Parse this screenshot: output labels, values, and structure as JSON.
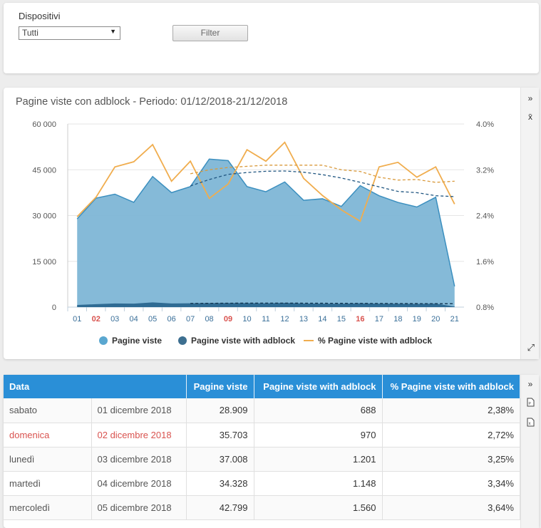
{
  "filter": {
    "label": "Dispositivi",
    "selected": "Tutti",
    "button": "Filter"
  },
  "colors": {
    "area_fill": "#7eb6d6",
    "area_line": "#3b8fbf",
    "adblock": "#2f6b93",
    "pct_line": "#f0ad4e",
    "header": "#2a8fd7",
    "weekend": "#d9534f"
  },
  "chart": {
    "title": "Pagine viste con adblock - Periodo: 01/12/2018-21/12/2018",
    "legend": [
      "Pagine viste",
      "Pagine viste with adblock",
      "% Pagine viste with adblock"
    ],
    "side_icons": [
      "chevron-double-right-icon",
      "x-bar-icon"
    ]
  },
  "chart_data": {
    "type": "area",
    "categories": [
      "01",
      "02",
      "03",
      "04",
      "05",
      "06",
      "07",
      "08",
      "09",
      "10",
      "11",
      "12",
      "13",
      "14",
      "15",
      "16",
      "17",
      "18",
      "19",
      "20",
      "21"
    ],
    "weekend_categories": [
      "02",
      "09",
      "16"
    ],
    "ylim": [
      0,
      60000
    ],
    "y_ticks": [
      "0",
      "15 000",
      "30 000",
      "45 000",
      "60 000"
    ],
    "y2lim": [
      0.8,
      4.0
    ],
    "y2_ticks": [
      "0.8%",
      "1.6%",
      "2.4%",
      "3.2%",
      "4.0%"
    ],
    "series": [
      {
        "name": "Pagine viste",
        "axis": "left",
        "values": [
          28909,
          35703,
          37008,
          34328,
          42799,
          37500,
          39500,
          48500,
          48000,
          39500,
          37800,
          41000,
          35000,
          35500,
          33000,
          39800,
          36500,
          34300,
          32800,
          36000,
          6800
        ]
      },
      {
        "name": "Pagine viste with adblock",
        "axis": "left",
        "values": [
          688,
          970,
          1201,
          1148,
          1560,
          1200,
          1250,
          1300,
          1350,
          1300,
          1250,
          1400,
          1200,
          1150,
          1100,
          1250,
          1150,
          1100,
          1050,
          1150,
          200
        ]
      },
      {
        "name": "% Pagine viste with adblock",
        "axis": "right",
        "values": [
          2.38,
          2.72,
          3.25,
          3.34,
          3.64,
          3.0,
          3.35,
          2.7,
          2.95,
          3.55,
          3.35,
          3.68,
          3.05,
          2.75,
          2.5,
          2.3,
          3.25,
          3.33,
          3.07,
          3.25,
          2.6
        ]
      }
    ],
    "trend_lines": {
      "start_index": 6,
      "pageviews": [
        39700,
        41800,
        43500,
        44100,
        44500,
        44600,
        44200,
        43400,
        42300,
        40900,
        39400,
        37900,
        37500,
        36500,
        36200
      ],
      "adblock": [
        1210,
        1250,
        1290,
        1300,
        1310,
        1310,
        1290,
        1270,
        1240,
        1220,
        1190,
        1160,
        1150,
        1130,
        1120
      ],
      "pct": [
        3.13,
        3.2,
        3.24,
        3.26,
        3.28,
        3.28,
        3.28,
        3.28,
        3.2,
        3.17,
        3.07,
        3.02,
        3.03,
        2.98,
        3.0
      ]
    }
  },
  "table": {
    "headers": [
      "Data",
      "Pagine viste",
      "Pagine viste with adblock",
      "% Pagine viste with adblock"
    ],
    "rows": [
      {
        "day": "sabato",
        "date": "01 dicembre 2018",
        "views": "28.909",
        "adblock": "688",
        "pct": "2,38%",
        "weekend": false
      },
      {
        "day": "domenica",
        "date": "02 dicembre 2018",
        "views": "35.703",
        "adblock": "970",
        "pct": "2,72%",
        "weekend": true
      },
      {
        "day": "lunedì",
        "date": "03 dicembre 2018",
        "views": "37.008",
        "adblock": "1.201",
        "pct": "3,25%",
        "weekend": false
      },
      {
        "day": "martedì",
        "date": "04 dicembre 2018",
        "views": "34.328",
        "adblock": "1.148",
        "pct": "3,34%",
        "weekend": false
      },
      {
        "day": "mercoledì",
        "date": "05 dicembre 2018",
        "views": "42.799",
        "adblock": "1.560",
        "pct": "3,64%",
        "weekend": false
      }
    ],
    "side_icons": [
      "chevron-double-right-icon",
      "pdf-icon",
      "excel-icon"
    ]
  }
}
